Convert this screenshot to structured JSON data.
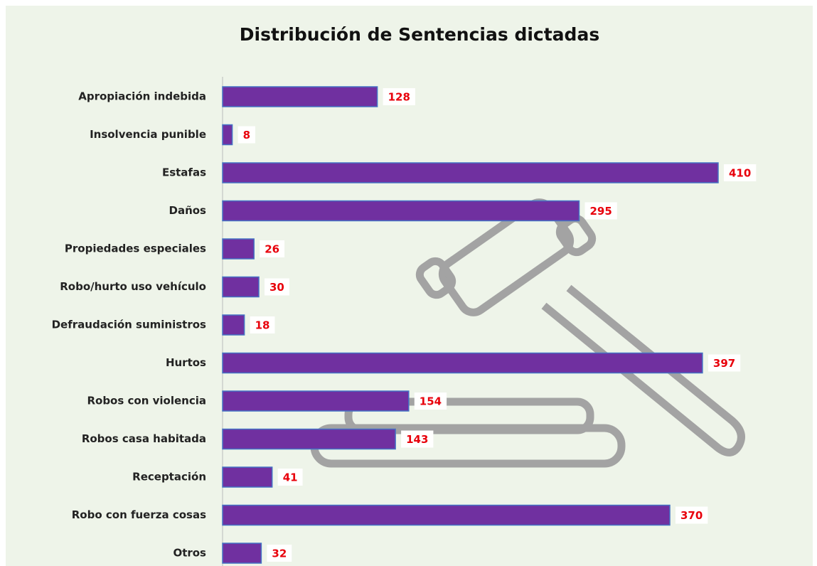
{
  "chart_data": {
    "type": "bar",
    "orientation": "horizontal",
    "title": "Distribución  de Sentencias dictadas",
    "categories": [
      "Apropiación indebida",
      "Insolvencia punible",
      "Estafas",
      "Daños",
      "Propiedades especiales",
      "Robo/hurto uso vehículo",
      "Defraudación suministros",
      "Hurtos",
      "Robos con violencia",
      "Robos casa habitada",
      "Receptación",
      "Robo con fuerza cosas",
      "Otros"
    ],
    "values": [
      128,
      8,
      410,
      295,
      26,
      30,
      18,
      397,
      154,
      143,
      41,
      370,
      32
    ],
    "color": "#7030a0",
    "label_color": "#e8000b"
  }
}
